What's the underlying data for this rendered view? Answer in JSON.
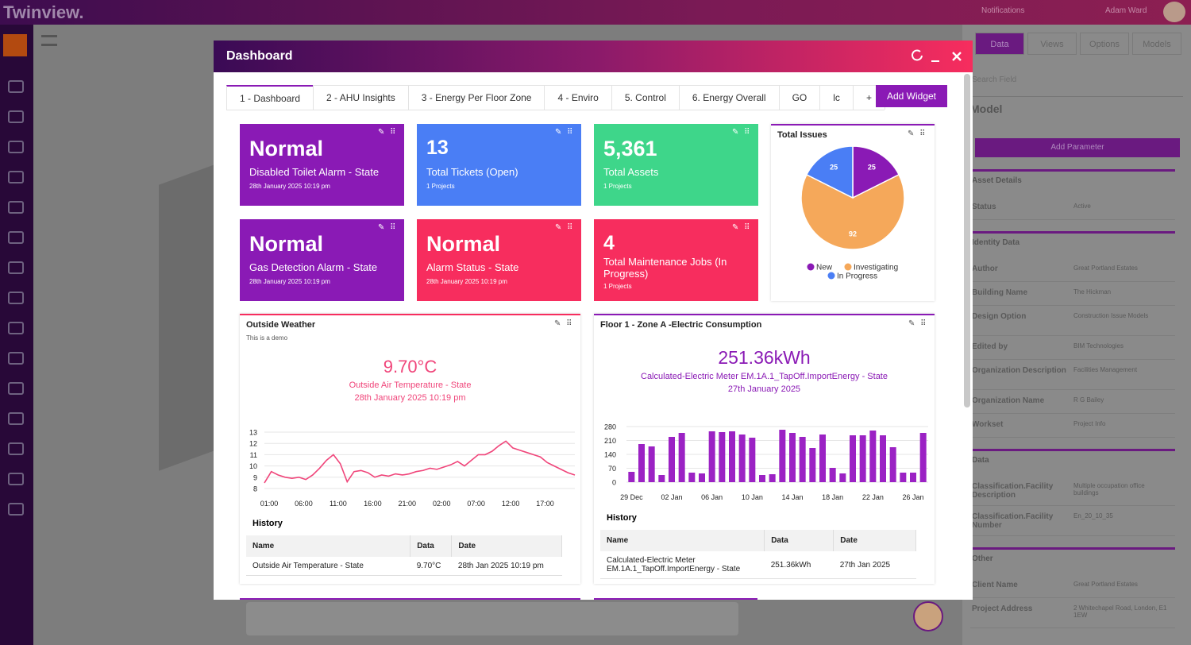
{
  "app": {
    "brand": "Twinview.",
    "notifications": "Notifications",
    "user": "Adam Ward"
  },
  "side_panel": {
    "tabs": [
      "Data",
      "Views",
      "Options",
      "Models"
    ],
    "search": "Search Field",
    "title": "Model",
    "button": "Add Parameter",
    "sections": [
      {
        "title": "Asset Details",
        "rows": [
          [
            "Status",
            "Active"
          ]
        ]
      },
      {
        "title": "Identity Data",
        "rows": [
          [
            "Author",
            "Great Portland Estates"
          ],
          [
            "Building Name",
            "The Hickman"
          ],
          [
            "Design Option",
            "Construction Issue Models"
          ],
          [
            "Edited by",
            "BIM Technologies"
          ],
          [
            "Organization Description",
            "Facilities Management"
          ],
          [
            "Organization Name",
            "R G Bailey"
          ],
          [
            "Workset",
            "Project Info"
          ]
        ]
      },
      {
        "title": "Data",
        "rows": [
          [
            "Classification.Facility Description",
            "Multiple occupation office buildings"
          ],
          [
            "Classification.Facility Number",
            "En_20_10_35"
          ]
        ]
      },
      {
        "title": "Other",
        "rows": [
          [
            "Client Name",
            "Great Portland Estates"
          ],
          [
            "Project Address",
            "2 Whitechapel Road, London, E1 1EW"
          ]
        ]
      }
    ]
  },
  "dashboard": {
    "title": "Dashboard",
    "tabs": [
      "1 - Dashboard",
      "2 - AHU Insights",
      "3 - Energy Per Floor Zone",
      "4 - Enviro",
      "5. Control",
      "6. Energy Overall",
      "GO",
      "lc",
      "+"
    ],
    "add_widget": "Add Widget",
    "tiles": [
      {
        "value": "Normal",
        "label": "Disabled Toilet Alarm - State",
        "detail": "28th January 2025 10:19 pm",
        "color": "#8a1ab5"
      },
      {
        "value": "13",
        "label": "Total Tickets (Open)",
        "detail": "1 Projects",
        "color": "#4a7ef5"
      },
      {
        "value": "5,361",
        "label": "Total Assets",
        "detail": "1 Projects",
        "color": "#3ed68a"
      },
      {
        "value": "Normal",
        "label": "Gas Detection Alarm - State",
        "detail": "28th January 2025 10:19 pm",
        "color": "#8a1ab5"
      },
      {
        "value": "Normal",
        "label": "Alarm Status - State",
        "detail": "28th January 2025 10:19 pm",
        "color": "#f72d5e"
      },
      {
        "value": "4",
        "label": "Total Maintenance Jobs (In Progress)",
        "detail": "1 Projects",
        "color": "#f72d5e"
      }
    ],
    "weather": {
      "reading": "9.70°C",
      "source": "Outside Air Temperature - State",
      "date": "28th January 2025 10:19 pm",
      "history_title": "History",
      "history_columns": [
        "Name",
        "Data",
        "Date"
      ],
      "history_rows": [
        [
          "Outside Air Temperature - State",
          "9.70°C",
          "28th Jan 2025 10:19 pm"
        ]
      ]
    },
    "energy": {
      "reading": "251.36kWh",
      "source": "Calculated-Electric Meter EM.1A.1_TapOff.ImportEnergy - State",
      "date": "27th January 2025",
      "history_title": "History",
      "history_columns": [
        "Name",
        "Data",
        "Date"
      ],
      "history_rows": [
        [
          "Calculated-Electric Meter EM.1A.1_TapOff.ImportEnergy - State",
          "251.36kWh",
          "27th Jan 2025"
        ]
      ]
    }
  },
  "chart_data": [
    {
      "type": "pie",
      "title": "Total Issues",
      "categories": [
        "New",
        "Investigating",
        "In Progress"
      ],
      "values": [
        25,
        92,
        25
      ],
      "colors": [
        "#8a1ab5",
        "#f5a85a",
        "#4a7ef5"
      ]
    },
    {
      "type": "line",
      "title": "Outside Weather",
      "subtitle": "This is a demo",
      "color": "#f0457a",
      "grid": true,
      "categories": [
        "01:00",
        null,
        null,
        null,
        null,
        "06:00",
        null,
        null,
        null,
        null,
        "11:00",
        null,
        null,
        null,
        null,
        "16:00",
        null,
        null,
        null,
        null,
        "21:00",
        null,
        null,
        null,
        null,
        "02:00",
        null,
        null,
        null,
        null,
        "07:00",
        null,
        null,
        null,
        null,
        "12:00",
        null,
        null,
        null,
        null,
        "17:00",
        null,
        null,
        null,
        null,
        null
      ],
      "values": [
        8.5,
        9.5,
        9.2,
        9.0,
        8.9,
        9.0,
        8.8,
        9.2,
        9.8,
        10.5,
        11.0,
        10.2,
        8.6,
        9.5,
        9.6,
        9.4,
        9.0,
        9.2,
        9.1,
        9.3,
        9.2,
        9.3,
        9.5,
        9.6,
        9.8,
        9.7,
        9.9,
        10.1,
        10.4,
        10.0,
        10.5,
        11.0,
        11.0,
        11.3,
        11.8,
        12.2,
        11.6,
        11.4,
        11.2,
        11.0,
        10.8,
        10.3,
        10.0,
        9.7,
        9.4,
        9.2
      ],
      "ylim": [
        8,
        13
      ],
      "yticks": [
        8,
        9,
        10,
        11,
        12,
        13
      ]
    },
    {
      "type": "bar",
      "title": "Floor 1 - Zone A -Electric Consumption",
      "color": "#9b22c4",
      "grid": true,
      "categories": [
        "29 Dec",
        null,
        null,
        null,
        "02 Jan",
        null,
        null,
        null,
        "06 Jan",
        null,
        null,
        null,
        "10 Jan",
        null,
        null,
        null,
        "14 Jan",
        null,
        null,
        null,
        "18 Jan",
        null,
        null,
        null,
        "22 Jan",
        null,
        null,
        null,
        "26 Jan",
        null
      ],
      "values": [
        52,
        192,
        180,
        36,
        228,
        248,
        48,
        44,
        256,
        252,
        256,
        240,
        224,
        36,
        40,
        264,
        248,
        228,
        172,
        240,
        72,
        44,
        236,
        236,
        260,
        236,
        176,
        48,
        48,
        248
      ],
      "ylim": [
        0,
        280
      ],
      "yticks": [
        0,
        70,
        140,
        210,
        280
      ]
    }
  ]
}
